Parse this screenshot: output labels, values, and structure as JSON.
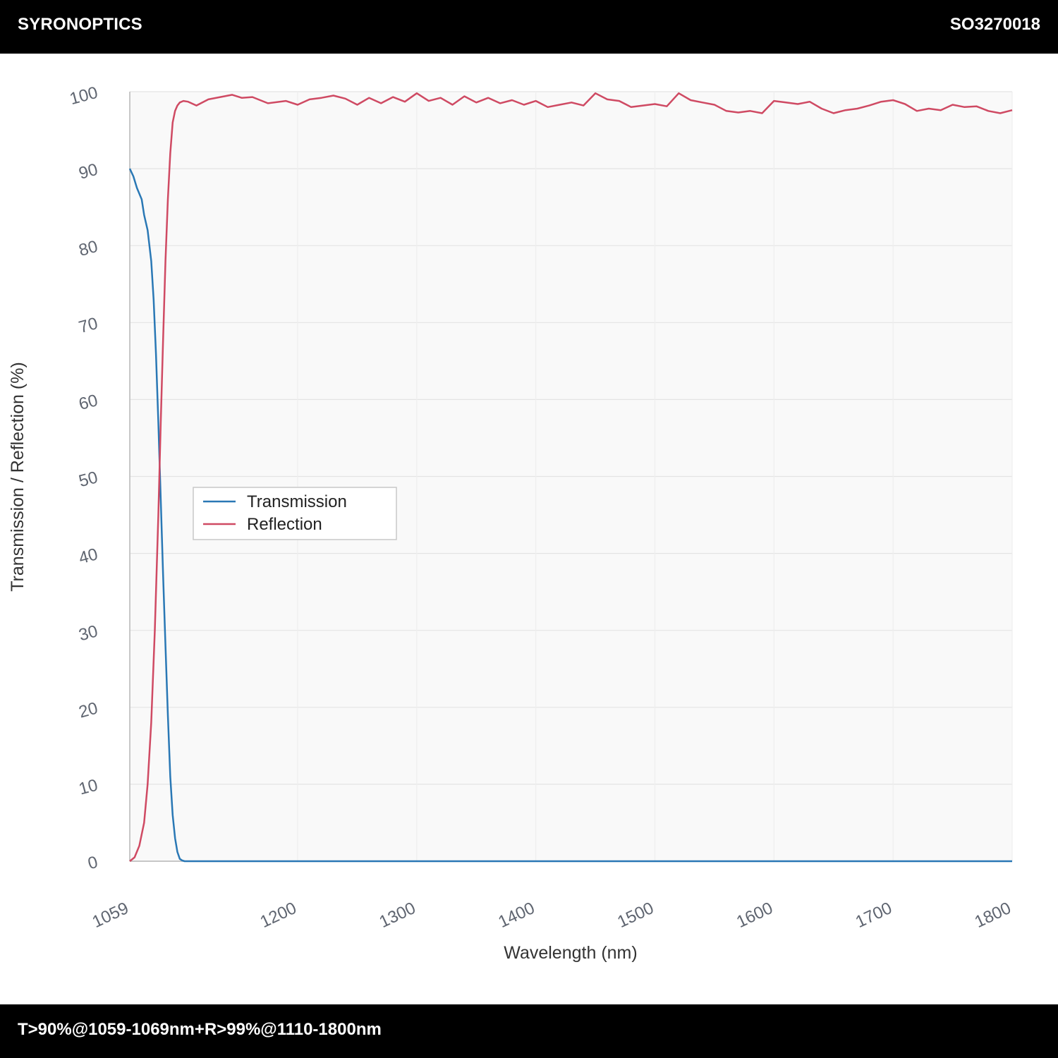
{
  "header": {
    "brand": "SYRONOPTICS",
    "part_number": "SO3270018"
  },
  "footer": {
    "spec": "T>90%@1059-1069nm+R>99%@1110-1800nm"
  },
  "colors": {
    "transmission": "#2a78b5",
    "reflection": "#cf4a63",
    "plot_bg": "#f9f9f9",
    "grid": "#e4e4e4"
  },
  "chart_data": {
    "type": "line",
    "xlabel": "Wavelength (nm)",
    "ylabel": "Transmission / Reflection (%)",
    "xlim": [
      1059,
      1800
    ],
    "ylim": [
      0,
      100
    ],
    "x_ticks": [
      1059,
      1200,
      1300,
      1400,
      1500,
      1600,
      1700,
      1800
    ],
    "y_ticks": [
      0,
      10,
      20,
      30,
      40,
      50,
      60,
      70,
      80,
      90,
      100
    ],
    "grid": true,
    "legend_position": "center-left",
    "series": [
      {
        "name": "Transmission",
        "color": "#2a78b5",
        "x": [
          1059,
          1062,
          1065,
          1069,
          1071,
          1074,
          1077,
          1079,
          1081,
          1083,
          1085,
          1087,
          1089,
          1091,
          1093,
          1095,
          1097,
          1099,
          1101,
          1103,
          1105,
          1108,
          1112,
          1200,
          1300,
          1400,
          1500,
          1600,
          1700,
          1800
        ],
        "y": [
          90,
          89,
          87.5,
          86,
          84,
          82,
          78,
          73,
          66,
          57,
          47,
          37,
          28,
          19,
          11,
          6,
          3,
          1.2,
          0.3,
          0.1,
          0,
          0,
          0,
          0,
          0,
          0,
          0,
          0,
          0,
          0
        ]
      },
      {
        "name": "Reflection",
        "color": "#cf4a63",
        "x": [
          1059,
          1063,
          1067,
          1071,
          1074,
          1077,
          1080,
          1083,
          1085,
          1087,
          1089,
          1091,
          1093,
          1095,
          1097,
          1099,
          1101,
          1104,
          1108,
          1115,
          1125,
          1135,
          1145,
          1153,
          1162,
          1175,
          1190,
          1200,
          1210,
          1220,
          1230,
          1240,
          1250,
          1260,
          1270,
          1280,
          1290,
          1300,
          1310,
          1320,
          1330,
          1340,
          1350,
          1360,
          1370,
          1380,
          1390,
          1400,
          1410,
          1420,
          1430,
          1440,
          1450,
          1460,
          1470,
          1480,
          1490,
          1500,
          1510,
          1520,
          1530,
          1540,
          1550,
          1560,
          1570,
          1580,
          1590,
          1600,
          1610,
          1620,
          1630,
          1640,
          1650,
          1660,
          1670,
          1680,
          1690,
          1700,
          1710,
          1720,
          1730,
          1740,
          1750,
          1760,
          1770,
          1780,
          1790,
          1800
        ],
        "y": [
          0,
          0.5,
          2,
          5,
          10,
          18,
          30,
          45,
          57,
          68,
          78,
          86,
          92,
          96,
          97.5,
          98.2,
          98.6,
          98.8,
          98.7,
          98.2,
          99,
          99.3,
          99.6,
          99.2,
          99.3,
          98.5,
          98.8,
          98.3,
          99,
          99.2,
          99.5,
          99.1,
          98.3,
          99.2,
          98.5,
          99.3,
          98.7,
          99.8,
          98.8,
          99.2,
          98.3,
          99.4,
          98.6,
          99.2,
          98.5,
          98.9,
          98.3,
          98.8,
          98,
          98.3,
          98.6,
          98.2,
          99.8,
          99,
          98.8,
          98,
          98.2,
          98.4,
          98.1,
          99.8,
          98.9,
          98.6,
          98.3,
          97.5,
          97.3,
          97.5,
          97.2,
          98.8,
          98.6,
          98.4,
          98.7,
          97.8,
          97.2,
          97.6,
          97.8,
          98.2,
          98.7,
          98.9,
          98.4,
          97.5,
          97.8,
          97.6,
          98.3,
          98,
          98.1,
          97.5,
          97.2,
          97.6
        ]
      }
    ]
  }
}
